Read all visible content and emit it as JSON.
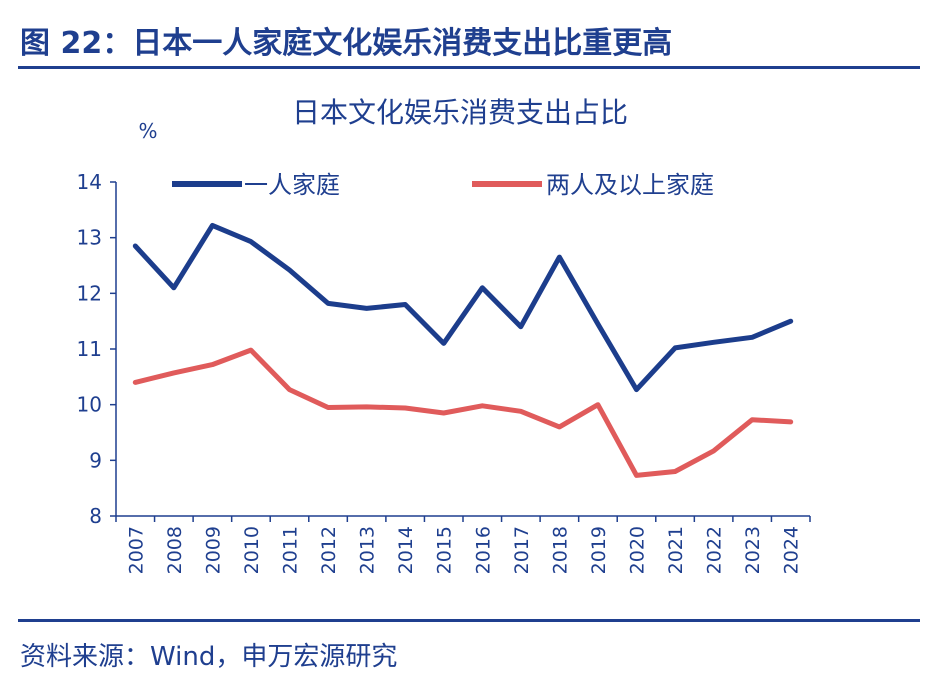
{
  "figure": {
    "title": "图 22：日本一人家庭文化娱乐消费支出比重更高",
    "source": "资料来源：Wind，申万宏源研究"
  },
  "chart_data": {
    "type": "line",
    "title": "日本文化娱乐消费支出占比",
    "ylabel": "%",
    "xlabel": "",
    "ylim": [
      8,
      14
    ],
    "yticks": [
      "8",
      "9",
      "10",
      "11",
      "12",
      "13",
      "14"
    ],
    "categories": [
      "2007",
      "2008",
      "2009",
      "2010",
      "2011",
      "2012",
      "2013",
      "2014",
      "2015",
      "2016",
      "2017",
      "2018",
      "2019",
      "2020",
      "2021",
      "2022",
      "2023",
      "2024"
    ],
    "legend_position": "top",
    "grid": false,
    "series": [
      {
        "name": "一人家庭",
        "color": "#1c3d8c",
        "values": [
          12.85,
          12.1,
          13.22,
          12.93,
          12.42,
          11.82,
          11.73,
          11.8,
          11.1,
          12.1,
          11.4,
          12.65,
          11.45,
          10.27,
          11.02,
          11.12,
          11.21,
          11.5
        ]
      },
      {
        "name": "两人及以上家庭",
        "color": "#e05b5b",
        "values": [
          10.4,
          10.57,
          10.72,
          10.98,
          10.27,
          9.95,
          9.96,
          9.94,
          9.85,
          9.98,
          9.88,
          9.6,
          10.0,
          8.73,
          8.8,
          9.17,
          9.73,
          9.69
        ]
      }
    ]
  }
}
